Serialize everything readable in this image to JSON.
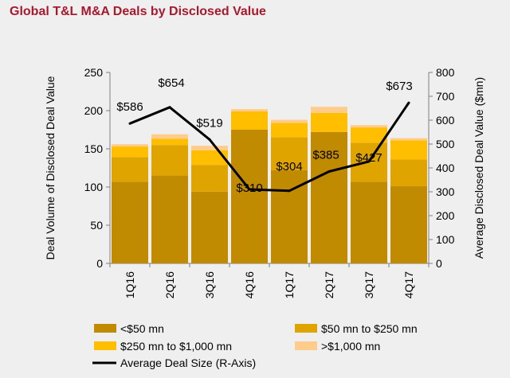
{
  "title": "Global T&L M&A Deals by Disclosed Value",
  "colors": {
    "title": "#a6192e",
    "under50": "#c08b00",
    "m50to250": "#dfa400",
    "m250to1000": "#ffbe00",
    "over1000": "#ffcc8c",
    "line": "#000000",
    "axis": "#7f7f7f",
    "text": "#000000"
  },
  "chart_data": {
    "type": "bar",
    "stacked": true,
    "categories": [
      "1Q16",
      "2Q16",
      "3Q16",
      "4Q16",
      "1Q17",
      "2Q17",
      "3Q17",
      "4Q17"
    ],
    "series": [
      {
        "name": "<$50 mn",
        "key": "under50",
        "values": [
          107,
          115,
          94,
          175,
          122,
          172,
          107,
          101
        ]
      },
      {
        "name": "$50 mn to $250 mn",
        "key": "m50to250",
        "values": [
          32,
          40,
          35,
          0,
          43,
          0,
          51,
          35
        ]
      },
      {
        "name": "$250 mn to $1,000 mn",
        "key": "m250to1000",
        "values": [
          14,
          8,
          19,
          24,
          19,
          25,
          20,
          25
        ]
      },
      {
        "name": ">$1,000 mn",
        "key": "over1000",
        "values": [
          3,
          6,
          6,
          3,
          4,
          8,
          3,
          3
        ]
      }
    ],
    "line_series": {
      "name": "Average Deal Size (R-Axis)",
      "values": [
        586,
        654,
        519,
        310,
        304,
        385,
        427,
        673
      ],
      "labels": [
        "$586",
        "$654",
        "$519",
        "$310",
        "$304",
        "$385",
        "$427",
        "$673"
      ]
    },
    "ylabel": "Deal Volume of Disclosed Deal Value",
    "y2label": "Average Disclosed Deal Value ($mn)",
    "ylim": [
      0,
      250
    ],
    "y2lim": [
      0,
      800
    ],
    "yticks": [
      0,
      50,
      100,
      150,
      200,
      250
    ],
    "y2ticks": [
      0,
      100,
      200,
      300,
      400,
      500,
      600,
      700,
      800
    ],
    "legend_position": "bottom"
  }
}
